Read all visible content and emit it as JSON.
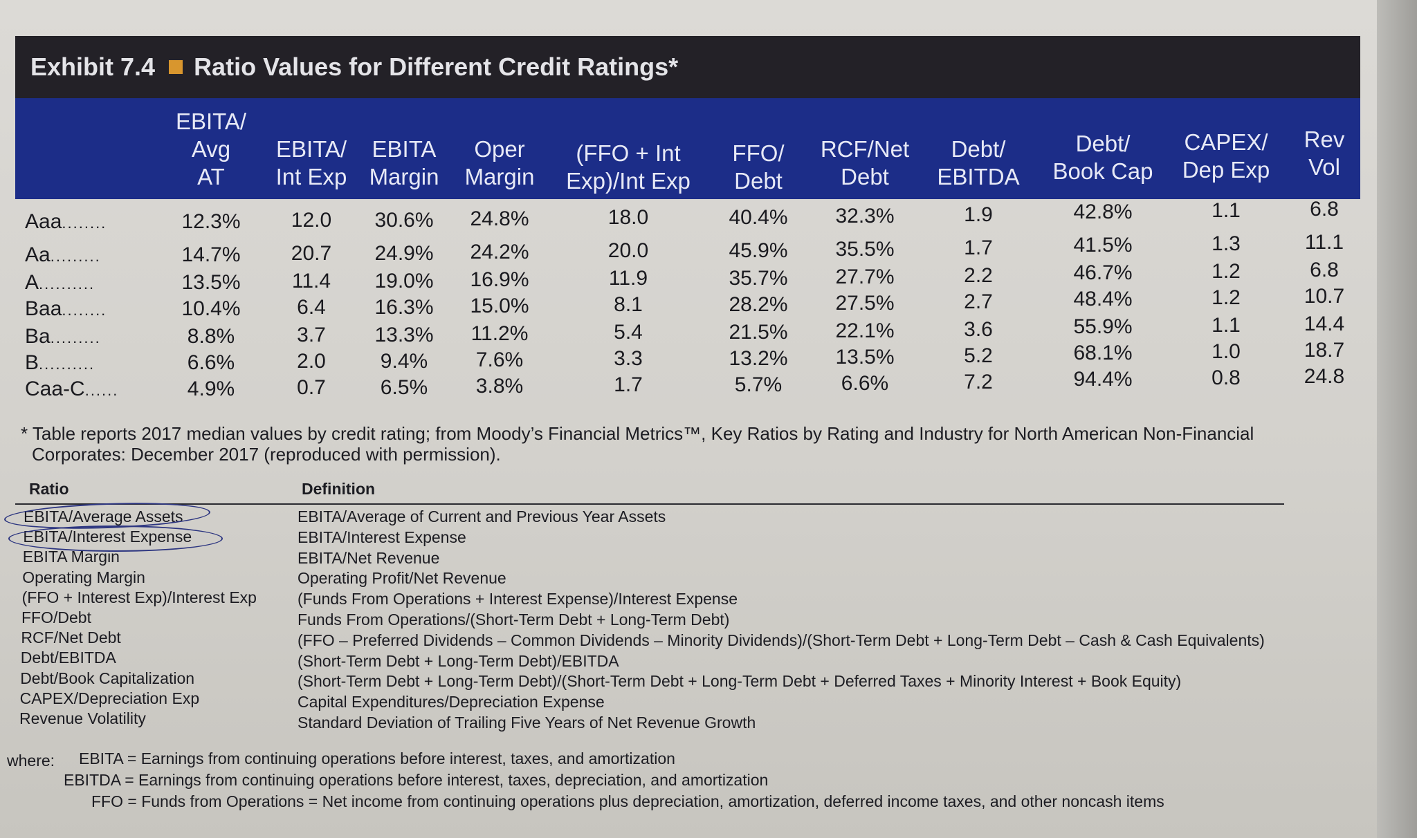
{
  "exhibit": {
    "number": "Exhibit 7.4",
    "title": "Ratio Values for Different Credit Ratings*",
    "accent_color": "#d8962e",
    "title_bar_color": "#232127",
    "header_color": "#1c2d88"
  },
  "table": {
    "columns": [
      {
        "lines": [
          "EBITA/",
          "Avg",
          "AT"
        ]
      },
      {
        "lines": [
          "EBITA/",
          "Int Exp"
        ]
      },
      {
        "lines": [
          "EBITA",
          "Margin"
        ]
      },
      {
        "lines": [
          "Oper",
          "Margin"
        ]
      },
      {
        "lines": [
          "(FFO + Int",
          "Exp)/Int Exp"
        ]
      },
      {
        "lines": [
          "FFO/",
          "Debt"
        ]
      },
      {
        "lines": [
          "RCF/Net",
          "Debt"
        ]
      },
      {
        "lines": [
          "Debt/",
          "EBITDA"
        ]
      },
      {
        "lines": [
          "Debt/",
          "Book Cap"
        ]
      },
      {
        "lines": [
          "CAPEX/",
          "Dep Exp"
        ]
      },
      {
        "lines": [
          "Rev",
          "Vol"
        ]
      }
    ],
    "rows": [
      {
        "rating": "Aaa",
        "leader": "........",
        "values": [
          "12.3%",
          "12.0",
          "30.6%",
          "24.8%",
          "18.0",
          "40.4%",
          "32.3%",
          "1.9",
          "42.8%",
          "1.1",
          "6.8"
        ]
      },
      {
        "rating": "Aa",
        "leader": ".........",
        "values": [
          "14.7%",
          "20.7",
          "24.9%",
          "24.2%",
          "20.0",
          "45.9%",
          "35.5%",
          "1.7",
          "41.5%",
          "1.3",
          "11.1"
        ]
      },
      {
        "rating": "A",
        "leader": "..........",
        "values": [
          "13.5%",
          "11.4",
          "19.0%",
          "16.9%",
          "11.9",
          "35.7%",
          "27.7%",
          "2.2",
          "46.7%",
          "1.2",
          "6.8"
        ]
      },
      {
        "rating": "Baa",
        "leader": "........",
        "values": [
          "10.4%",
          "6.4",
          "16.3%",
          "15.0%",
          "8.1",
          "28.2%",
          "27.5%",
          "2.7",
          "48.4%",
          "1.2",
          "10.7"
        ]
      },
      {
        "rating": "Ba",
        "leader": ".........",
        "values": [
          "8.8%",
          "3.7",
          "13.3%",
          "11.2%",
          "5.4",
          "21.5%",
          "22.1%",
          "3.6",
          "55.9%",
          "1.1",
          "14.4"
        ]
      },
      {
        "rating": "B",
        "leader": "..........",
        "values": [
          "6.6%",
          "2.0",
          "9.4%",
          "7.6%",
          "3.3",
          "13.2%",
          "13.5%",
          "5.2",
          "68.1%",
          "1.0",
          "18.7"
        ]
      },
      {
        "rating": "Caa-C",
        "leader": "......",
        "values": [
          "4.9%",
          "0.7",
          "6.5%",
          "3.8%",
          "1.7",
          "5.7%",
          "6.6%",
          "7.2",
          "94.4%",
          "0.8",
          "24.8"
        ]
      }
    ]
  },
  "footnote": {
    "line1": "* Table reports 2017 median values by credit rating; from Moody’s Financial Metrics™, Key Ratios by Rating and Industry for North American Non-Financial",
    "line2": "Corporates: December 2017 (reproduced with permission)."
  },
  "definitions": {
    "ratio_header": "Ratio",
    "definition_header": "Definition",
    "items": [
      {
        "ratio": "EBITA/Average Assets",
        "definition": "EBITA/Average of Current and Previous Year Assets"
      },
      {
        "ratio": "EBITA/Interest Expense",
        "definition": "EBITA/Interest Expense"
      },
      {
        "ratio": "EBITA Margin",
        "definition": "EBITA/Net Revenue"
      },
      {
        "ratio": "Operating Margin",
        "definition": "Operating Profit/Net Revenue"
      },
      {
        "ratio": "(FFO + Interest Exp)/Interest Exp",
        "definition": "(Funds From Operations + Interest Expense)/Interest Expense"
      },
      {
        "ratio": "FFO/Debt",
        "definition": "Funds From Operations/(Short-Term Debt + Long-Term Debt)"
      },
      {
        "ratio": "RCF/Net Debt",
        "definition": "(FFO – Preferred Dividends – Common Dividends – Minority Dividends)/(Short-Term Debt + Long-Term Debt – Cash & Cash Equivalents)"
      },
      {
        "ratio": "Debt/EBITDA",
        "definition": "(Short-Term Debt + Long-Term Debt)/EBITDA"
      },
      {
        "ratio": "Debt/Book Capitalization",
        "definition": "(Short-Term Debt + Long-Term Debt)/(Short-Term Debt + Long-Term Debt + Deferred Taxes + Minority Interest + Book Equity)"
      },
      {
        "ratio": "CAPEX/Depreciation Exp",
        "definition": "Capital Expenditures/Depreciation Expense"
      },
      {
        "ratio": "Revenue Volatility",
        "definition": "Standard Deviation of Trailing Five Years of Net Revenue Growth"
      }
    ]
  },
  "where": {
    "label": "where:",
    "lines": [
      "EBITA = Earnings from continuing operations before interest, taxes, and amortization",
      "EBITDA = Earnings from continuing operations before interest, taxes, depreciation, and amortization",
      "FFO = Funds from Operations = Net income from continuing operations plus depreciation, amortization, deferred income taxes, and other noncash items"
    ]
  }
}
